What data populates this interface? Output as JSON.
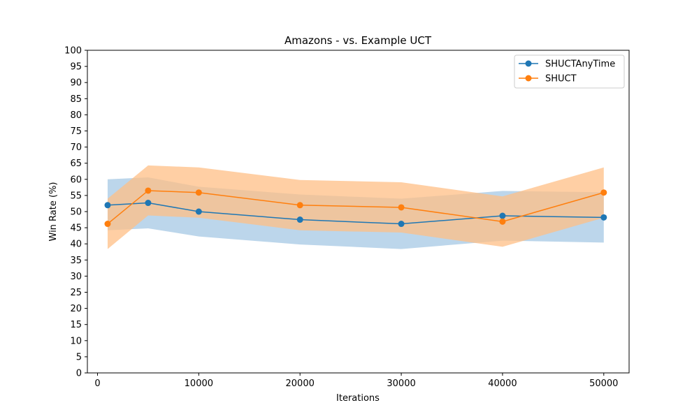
{
  "chart_data": {
    "type": "line",
    "title": "Amazons - vs. Example UCT",
    "xlabel": "Iterations",
    "ylabel": "Win Rate (%)",
    "x": [
      1000,
      5000,
      10000,
      20000,
      30000,
      40000,
      50000
    ],
    "xlim": [
      -1000,
      52500
    ],
    "ylim": [
      0,
      100
    ],
    "xticks": [
      0,
      10000,
      20000,
      30000,
      40000,
      50000
    ],
    "yticks": [
      0,
      5,
      10,
      15,
      20,
      25,
      30,
      35,
      40,
      45,
      50,
      55,
      60,
      65,
      70,
      75,
      80,
      85,
      90,
      95,
      100
    ],
    "grid": false,
    "legend_position": "top-right",
    "series": [
      {
        "name": "SHUCTAnyTime",
        "color": "#1f77b4",
        "band_color": "#a6c8e4",
        "values": [
          52,
          52.7,
          50,
          47.5,
          46.2,
          48.7,
          48.2
        ],
        "lower": [
          44.2,
          44.8,
          42.3,
          39.8,
          38.4,
          41,
          40.4
        ],
        "upper": [
          60,
          60.6,
          57.7,
          55.3,
          54,
          56.4,
          56
        ]
      },
      {
        "name": "SHUCT",
        "color": "#ff7f0e",
        "band_color": "#ffbf86",
        "values": [
          46.2,
          56.5,
          55.9,
          52,
          51.3,
          46.9,
          55.9
        ],
        "lower": [
          38.4,
          48.8,
          48.1,
          44.2,
          43.5,
          39.1,
          48.1
        ],
        "upper": [
          54,
          64.3,
          63.7,
          59.8,
          59.1,
          54.7,
          63.7
        ]
      }
    ]
  }
}
